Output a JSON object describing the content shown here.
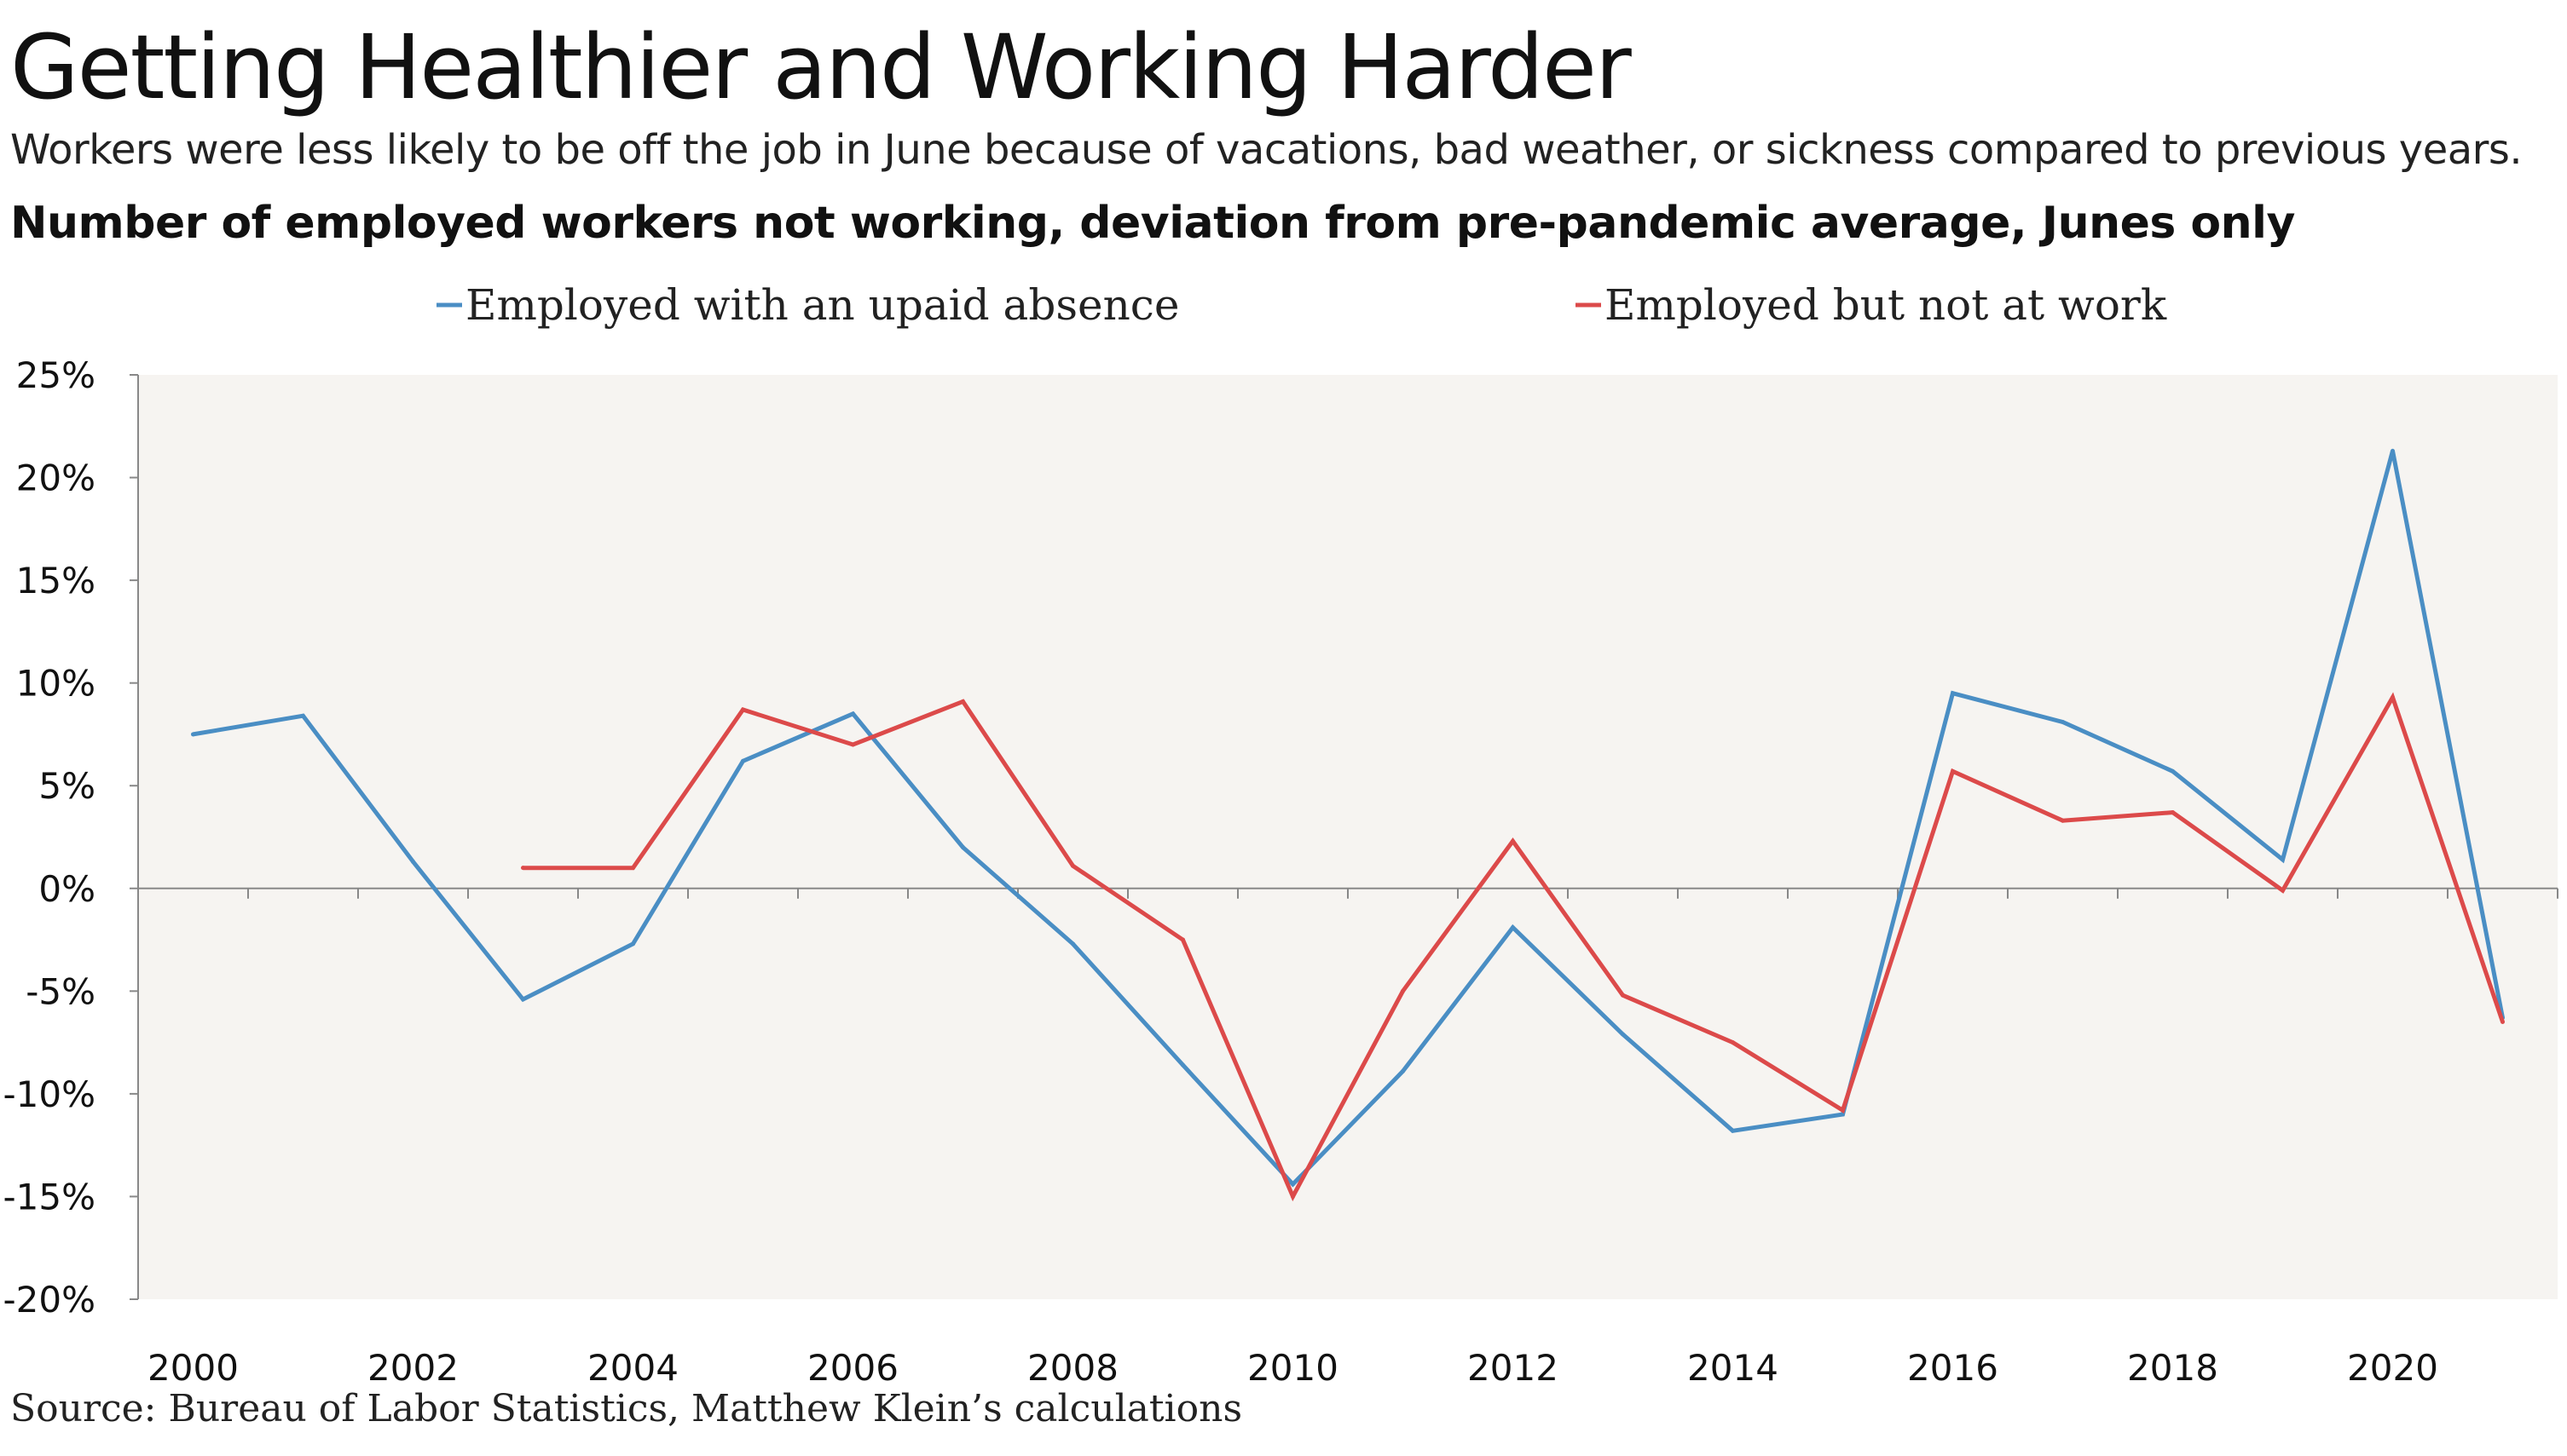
{
  "title": "Getting Healthier and Working Harder",
  "subtitle": "Workers were less likely to be off the job in June because of vacations, bad weather, or sickness compared to previous years.",
  "chart_heading": "Number of employed workers not working, deviation from pre-pandemic average, Junes only",
  "source": "Source: Bureau of Labor Statistics, Matthew Klein’s calculations",
  "colors": {
    "series1": "#4a8ec4",
    "series2": "#dc4a4a",
    "plot_bg": "#f6f4f1",
    "axis": "#888888"
  },
  "chart_data": {
    "type": "line",
    "title": "Number of employed workers not working, deviation from pre-pandemic average, Junes only",
    "xlabel": "",
    "ylabel": "",
    "ylim": [
      -20,
      25
    ],
    "xlim": [
      1999.5,
      2021.5
    ],
    "yticks": [
      -20,
      -15,
      -10,
      -5,
      0,
      5,
      10,
      15,
      20,
      25
    ],
    "ytick_labels": [
      "-20%",
      "-15%",
      "-10%",
      "-5%",
      "0%",
      "5%",
      "10%",
      "15%",
      "20%",
      "25%"
    ],
    "xticks": [
      2000,
      2002,
      2004,
      2006,
      2008,
      2010,
      2012,
      2014,
      2016,
      2018,
      2020
    ],
    "xtick_labels": [
      "2000",
      "2002",
      "2004",
      "2006",
      "2008",
      "2010",
      "2012",
      "2014",
      "2016",
      "2018",
      "2020"
    ],
    "grid": false,
    "legend_position": "top",
    "series": [
      {
        "name": "Employed with an upaid absence",
        "color": "#4a8ec4",
        "x": [
          2000,
          2001,
          2002,
          2003,
          2004,
          2005,
          2006,
          2007,
          2008,
          2009,
          2010,
          2011,
          2012,
          2013,
          2014,
          2015,
          2016,
          2017,
          2018,
          2019,
          2020,
          2021
        ],
        "values": [
          7.5,
          8.4,
          1.3,
          -5.4,
          -2.7,
          6.2,
          8.5,
          2.0,
          -2.7,
          -8.6,
          -14.4,
          -8.9,
          -1.9,
          -7.1,
          -11.8,
          -11.0,
          9.5,
          8.1,
          5.7,
          1.4,
          21.3,
          -6.3
        ]
      },
      {
        "name": "Employed but not at work",
        "color": "#dc4a4a",
        "x": [
          2003,
          2004,
          2005,
          2006,
          2007,
          2008,
          2009,
          2010,
          2011,
          2012,
          2013,
          2014,
          2015,
          2016,
          2017,
          2018,
          2019,
          2020,
          2021
        ],
        "values": [
          1.0,
          1.0,
          8.7,
          7.0,
          9.1,
          1.1,
          -2.5,
          -15.0,
          -5.0,
          2.3,
          -5.2,
          -7.5,
          -10.8,
          5.7,
          3.3,
          3.7,
          -0.1,
          9.3,
          -6.5
        ]
      }
    ]
  }
}
